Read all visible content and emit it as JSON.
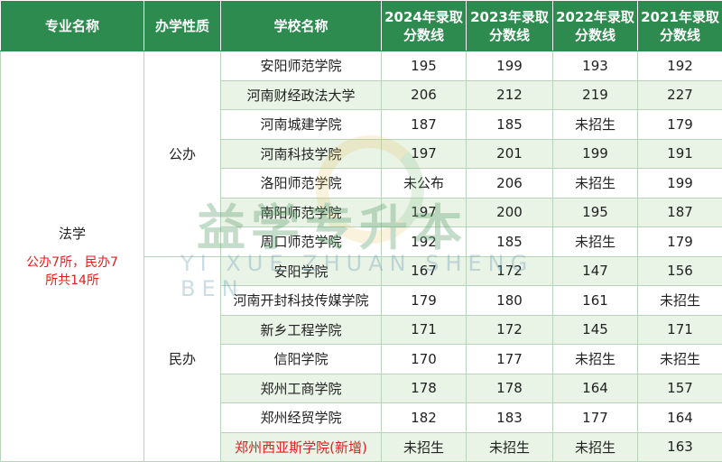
{
  "headers": [
    "专业名称",
    "办学性质",
    "学校名称",
    "2024年录取分数线",
    "2023年录取分数线",
    "2022年录取分数线",
    "2021年录取分数线"
  ],
  "major": {
    "name": "法学",
    "note": "公办7所，民办7所共14所"
  },
  "nature": {
    "public": "公办",
    "private": "民办"
  },
  "rows": [
    {
      "school": "安阳师范学院",
      "y2024": "195",
      "y2023": "199",
      "y2022": "193",
      "y2021": "192"
    },
    {
      "school": "河南财经政法大学",
      "y2024": "206",
      "y2023": "212",
      "y2022": "219",
      "y2021": "227"
    },
    {
      "school": "河南城建学院",
      "y2024": "187",
      "y2023": "185",
      "y2022": "未招生",
      "y2021": "179"
    },
    {
      "school": "河南科技学院",
      "y2024": "197",
      "y2023": "201",
      "y2022": "199",
      "y2021": "191"
    },
    {
      "school": "洛阳师范学院",
      "y2024": "未公布",
      "y2023": "206",
      "y2022": "未招生",
      "y2021": "199"
    },
    {
      "school": "南阳师范学院",
      "y2024": "197",
      "y2023": "200",
      "y2022": "195",
      "y2021": "187"
    },
    {
      "school": "周口师范学院",
      "y2024": "192",
      "y2023": "185",
      "y2022": "未招生",
      "y2021": "179"
    },
    {
      "school": "安阳学院",
      "y2024": "167",
      "y2023": "172",
      "y2022": "147",
      "y2021": "156"
    },
    {
      "school": "河南开封科技传媒学院",
      "y2024": "179",
      "y2023": "180",
      "y2022": "161",
      "y2021": "未招生"
    },
    {
      "school": "新乡工程学院",
      "y2024": "171",
      "y2023": "172",
      "y2022": "145",
      "y2021": "171"
    },
    {
      "school": "信阳学院",
      "y2024": "170",
      "y2023": "177",
      "y2022": "未招生",
      "y2021": "未招生"
    },
    {
      "school": "郑州工商学院",
      "y2024": "178",
      "y2023": "178",
      "y2022": "164",
      "y2021": "157"
    },
    {
      "school": "郑州经贸学院",
      "y2024": "182",
      "y2023": "183",
      "y2022": "177",
      "y2021": "164"
    },
    {
      "school": "郑州西亚斯学院(新增)",
      "y2024": "未招生",
      "y2023": "未招生",
      "y2022": "未招生",
      "y2021": "163"
    }
  ],
  "watermark": {
    "main": "益学专升本",
    "sub": "YI XUE ZHUAN SHENG BEN"
  },
  "colors": {
    "header_bg": "#2e8b4f",
    "alt_row_bg": "#e9f3e6",
    "highlight_text": "#e02020"
  }
}
